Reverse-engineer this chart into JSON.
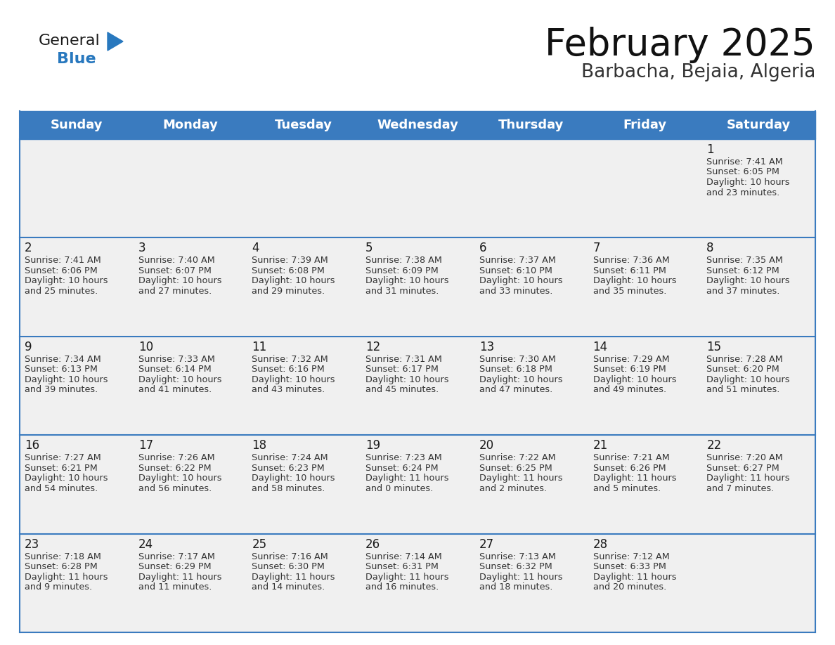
{
  "title": "February 2025",
  "subtitle": "Barbacha, Bejaia, Algeria",
  "header_color": "#3a7bbf",
  "header_text_color": "#ffffff",
  "cell_bg_color": "#f0f0f0",
  "border_color": "#3a7bbf",
  "outer_border_color": "#3a7bbf",
  "day_names": [
    "Sunday",
    "Monday",
    "Tuesday",
    "Wednesday",
    "Thursday",
    "Friday",
    "Saturday"
  ],
  "title_fontsize": 38,
  "subtitle_fontsize": 19,
  "header_fontsize": 13,
  "day_num_fontsize": 12,
  "detail_fontsize": 9.2,
  "weeks": [
    [
      {
        "day": null,
        "sunrise": null,
        "sunset": null,
        "daylight": null
      },
      {
        "day": null,
        "sunrise": null,
        "sunset": null,
        "daylight": null
      },
      {
        "day": null,
        "sunrise": null,
        "sunset": null,
        "daylight": null
      },
      {
        "day": null,
        "sunrise": null,
        "sunset": null,
        "daylight": null
      },
      {
        "day": null,
        "sunrise": null,
        "sunset": null,
        "daylight": null
      },
      {
        "day": null,
        "sunrise": null,
        "sunset": null,
        "daylight": null
      },
      {
        "day": 1,
        "sunrise": "7:41 AM",
        "sunset": "6:05 PM",
        "daylight": "10 hours and 23 minutes."
      }
    ],
    [
      {
        "day": 2,
        "sunrise": "7:41 AM",
        "sunset": "6:06 PM",
        "daylight": "10 hours and 25 minutes."
      },
      {
        "day": 3,
        "sunrise": "7:40 AM",
        "sunset": "6:07 PM",
        "daylight": "10 hours and 27 minutes."
      },
      {
        "day": 4,
        "sunrise": "7:39 AM",
        "sunset": "6:08 PM",
        "daylight": "10 hours and 29 minutes."
      },
      {
        "day": 5,
        "sunrise": "7:38 AM",
        "sunset": "6:09 PM",
        "daylight": "10 hours and 31 minutes."
      },
      {
        "day": 6,
        "sunrise": "7:37 AM",
        "sunset": "6:10 PM",
        "daylight": "10 hours and 33 minutes."
      },
      {
        "day": 7,
        "sunrise": "7:36 AM",
        "sunset": "6:11 PM",
        "daylight": "10 hours and 35 minutes."
      },
      {
        "day": 8,
        "sunrise": "7:35 AM",
        "sunset": "6:12 PM",
        "daylight": "10 hours and 37 minutes."
      }
    ],
    [
      {
        "day": 9,
        "sunrise": "7:34 AM",
        "sunset": "6:13 PM",
        "daylight": "10 hours and 39 minutes."
      },
      {
        "day": 10,
        "sunrise": "7:33 AM",
        "sunset": "6:14 PM",
        "daylight": "10 hours and 41 minutes."
      },
      {
        "day": 11,
        "sunrise": "7:32 AM",
        "sunset": "6:16 PM",
        "daylight": "10 hours and 43 minutes."
      },
      {
        "day": 12,
        "sunrise": "7:31 AM",
        "sunset": "6:17 PM",
        "daylight": "10 hours and 45 minutes."
      },
      {
        "day": 13,
        "sunrise": "7:30 AM",
        "sunset": "6:18 PM",
        "daylight": "10 hours and 47 minutes."
      },
      {
        "day": 14,
        "sunrise": "7:29 AM",
        "sunset": "6:19 PM",
        "daylight": "10 hours and 49 minutes."
      },
      {
        "day": 15,
        "sunrise": "7:28 AM",
        "sunset": "6:20 PM",
        "daylight": "10 hours and 51 minutes."
      }
    ],
    [
      {
        "day": 16,
        "sunrise": "7:27 AM",
        "sunset": "6:21 PM",
        "daylight": "10 hours and 54 minutes."
      },
      {
        "day": 17,
        "sunrise": "7:26 AM",
        "sunset": "6:22 PM",
        "daylight": "10 hours and 56 minutes."
      },
      {
        "day": 18,
        "sunrise": "7:24 AM",
        "sunset": "6:23 PM",
        "daylight": "10 hours and 58 minutes."
      },
      {
        "day": 19,
        "sunrise": "7:23 AM",
        "sunset": "6:24 PM",
        "daylight": "11 hours and 0 minutes."
      },
      {
        "day": 20,
        "sunrise": "7:22 AM",
        "sunset": "6:25 PM",
        "daylight": "11 hours and 2 minutes."
      },
      {
        "day": 21,
        "sunrise": "7:21 AM",
        "sunset": "6:26 PM",
        "daylight": "11 hours and 5 minutes."
      },
      {
        "day": 22,
        "sunrise": "7:20 AM",
        "sunset": "6:27 PM",
        "daylight": "11 hours and 7 minutes."
      }
    ],
    [
      {
        "day": 23,
        "sunrise": "7:18 AM",
        "sunset": "6:28 PM",
        "daylight": "11 hours and 9 minutes."
      },
      {
        "day": 24,
        "sunrise": "7:17 AM",
        "sunset": "6:29 PM",
        "daylight": "11 hours and 11 minutes."
      },
      {
        "day": 25,
        "sunrise": "7:16 AM",
        "sunset": "6:30 PM",
        "daylight": "11 hours and 14 minutes."
      },
      {
        "day": 26,
        "sunrise": "7:14 AM",
        "sunset": "6:31 PM",
        "daylight": "11 hours and 16 minutes."
      },
      {
        "day": 27,
        "sunrise": "7:13 AM",
        "sunset": "6:32 PM",
        "daylight": "11 hours and 18 minutes."
      },
      {
        "day": 28,
        "sunrise": "7:12 AM",
        "sunset": "6:33 PM",
        "daylight": "11 hours and 20 minutes."
      },
      {
        "day": null,
        "sunrise": null,
        "sunset": null,
        "daylight": null
      }
    ]
  ],
  "logo_color_general": "#1a1a1a",
  "logo_color_blue": "#2878be",
  "logo_triangle_color": "#2878be"
}
